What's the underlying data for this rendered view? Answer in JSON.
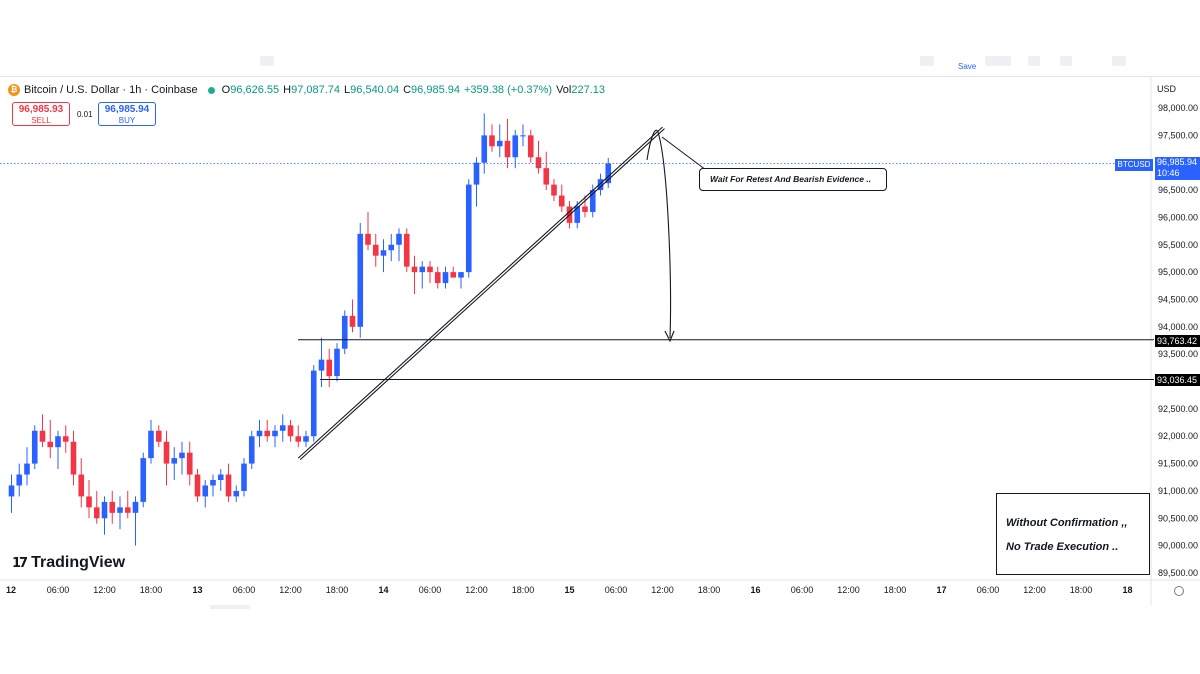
{
  "header": {
    "symbol_title": "Bitcoin / U.S. Dollar · 1h · Coinbase",
    "ohlc": [
      {
        "key": "O",
        "value": "96,626.55"
      },
      {
        "key": "H",
        "value": "97,087.74"
      },
      {
        "key": "L",
        "value": "96,540.04"
      },
      {
        "key": "C",
        "value": "96,985.94"
      },
      {
        "key": "",
        "value": "+359.38 (+0.37%)"
      },
      {
        "key": "Vol",
        "value": "227.13"
      }
    ],
    "save_label": "Save",
    "currency": "USD"
  },
  "trade": {
    "sell_price": "96,985.93",
    "sell_label": "SELL",
    "spread": "0.01",
    "buy_price": "96,985.94",
    "buy_label": "BUY"
  },
  "tags": {
    "symbol": "BTCUSD",
    "last_price": "96,985.94",
    "countdown": "10:46",
    "level_1": "93,763.42",
    "level_2": "93,036.45"
  },
  "annotations": {
    "callout": "Wait For Retest And Bearish Evidence ..",
    "note_line1": "Without Confirmation ,,",
    "note_line2": "No Trade Execution .."
  },
  "branding": {
    "logo_text": "TradingView"
  },
  "colors": {
    "up": "#2962ff",
    "down": "#f23645",
    "accent": "#2962ff",
    "text": "#131722"
  },
  "chart_data": {
    "type": "candlestick",
    "title": "Bitcoin / U.S. Dollar · 1h · Coinbase",
    "ylim": [
      89500,
      98200
    ],
    "y_ticks": [
      98000,
      97500,
      97000,
      96500,
      96000,
      95500,
      95000,
      94500,
      94000,
      93500,
      92500,
      92000,
      91500,
      91000,
      90500,
      90000,
      89500
    ],
    "y_tick_labels": [
      "98,000.00",
      "97,500.00",
      "97,000.00",
      "96,500.00",
      "96,000.00",
      "95,500.00",
      "95,000.00",
      "94,500.00",
      "94,000.00",
      "93,500.00",
      "92,500.00",
      "92,000.00",
      "91,500.00",
      "91,000.00",
      "90,500.00",
      "90,000.00",
      "89,500.00"
    ],
    "x_tick_labels": [
      "12",
      "06:00",
      "12:00",
      "18:00",
      "13",
      "06:00",
      "12:00",
      "18:00",
      "14",
      "06:00",
      "12:00",
      "18:00",
      "15",
      "06:00",
      "12:00",
      "18:00",
      "16",
      "06:00",
      "12:00",
      "18:00",
      "17",
      "06:00",
      "12:00",
      "18:00",
      "18"
    ],
    "bar_interval": "1h",
    "first_bar": "12 00:00",
    "candles": [
      [
        90900,
        91300,
        90600,
        91100
      ],
      [
        91100,
        91500,
        90900,
        91300
      ],
      [
        91300,
        91800,
        91100,
        91500
      ],
      [
        91500,
        92200,
        91400,
        92100
      ],
      [
        92100,
        92400,
        91800,
        91900
      ],
      [
        91900,
        92300,
        91600,
        91800
      ],
      [
        91800,
        92100,
        91400,
        92000
      ],
      [
        92000,
        92200,
        91700,
        91900
      ],
      [
        91900,
        92100,
        91100,
        91300
      ],
      [
        91300,
        91600,
        90700,
        90900
      ],
      [
        90900,
        91200,
        90500,
        90700
      ],
      [
        90700,
        91000,
        90400,
        90500
      ],
      [
        90500,
        90900,
        90200,
        90800
      ],
      [
        90800,
        91000,
        90400,
        90600
      ],
      [
        90600,
        90900,
        90300,
        90700
      ],
      [
        90700,
        91000,
        90500,
        90600
      ],
      [
        90600,
        90900,
        90000,
        90800
      ],
      [
        90800,
        91700,
        90700,
        91600
      ],
      [
        91600,
        92300,
        91500,
        92100
      ],
      [
        92100,
        92200,
        91800,
        91900
      ],
      [
        91900,
        92100,
        91100,
        91500
      ],
      [
        91500,
        91800,
        91200,
        91600
      ],
      [
        91600,
        91900,
        91300,
        91700
      ],
      [
        91700,
        91900,
        91100,
        91300
      ],
      [
        91300,
        91400,
        90800,
        90900
      ],
      [
        90900,
        91200,
        90700,
        91100
      ],
      [
        91100,
        91300,
        90900,
        91200
      ],
      [
        91200,
        91400,
        91000,
        91300
      ],
      [
        91300,
        91500,
        90800,
        90900
      ],
      [
        90900,
        91100,
        90800,
        91000
      ],
      [
        91000,
        91600,
        90900,
        91500
      ],
      [
        91500,
        92100,
        91400,
        92000
      ],
      [
        92000,
        92300,
        91800,
        92100
      ],
      [
        92100,
        92300,
        91900,
        92000
      ],
      [
        92000,
        92200,
        91800,
        92100
      ],
      [
        92100,
        92400,
        91900,
        92200
      ],
      [
        92200,
        92300,
        91900,
        92000
      ],
      [
        92000,
        92200,
        91800,
        91900
      ],
      [
        91900,
        92100,
        91800,
        92000
      ],
      [
        92000,
        93300,
        91900,
        93200
      ],
      [
        93200,
        93800,
        92900,
        93400
      ],
      [
        93400,
        93600,
        92900,
        93100
      ],
      [
        93100,
        93700,
        93000,
        93600
      ],
      [
        93600,
        94300,
        93500,
        94200
      ],
      [
        94200,
        94500,
        93900,
        94000
      ],
      [
        94000,
        95900,
        93800,
        95700
      ],
      [
        95700,
        96100,
        95400,
        95500
      ],
      [
        95500,
        95700,
        95100,
        95300
      ],
      [
        95300,
        95600,
        95000,
        95400
      ],
      [
        95400,
        95700,
        95200,
        95500
      ],
      [
        95500,
        95800,
        95200,
        95700
      ],
      [
        95700,
        95800,
        95000,
        95100
      ],
      [
        95100,
        95300,
        94600,
        95000
      ],
      [
        95000,
        95200,
        94700,
        95100
      ],
      [
        95100,
        95200,
        94800,
        95000
      ],
      [
        95000,
        95100,
        94700,
        94800
      ],
      [
        94800,
        95100,
        94700,
        95000
      ],
      [
        95000,
        95100,
        94900,
        94900
      ],
      [
        94900,
        95000,
        94700,
        95000
      ],
      [
        95000,
        96700,
        94900,
        96600
      ],
      [
        96600,
        97100,
        96200,
        97000
      ],
      [
        97000,
        97900,
        96800,
        97500
      ],
      [
        97500,
        97700,
        97200,
        97300
      ],
      [
        97300,
        97700,
        97100,
        97400
      ],
      [
        97400,
        97800,
        96900,
        97100
      ],
      [
        97100,
        97600,
        96900,
        97500
      ],
      [
        97500,
        97700,
        97300,
        97500
      ],
      [
        97500,
        97600,
        97000,
        97100
      ],
      [
        97100,
        97400,
        96800,
        96900
      ],
      [
        96900,
        97200,
        96500,
        96600
      ],
      [
        96600,
        96700,
        96300,
        96400
      ],
      [
        96400,
        96600,
        96100,
        96200
      ],
      [
        96200,
        96300,
        95800,
        95900
      ],
      [
        95900,
        96300,
        95800,
        96200
      ],
      [
        96200,
        96400,
        96000,
        96100
      ],
      [
        96100,
        96600,
        96000,
        96500
      ],
      [
        96500,
        96800,
        96400,
        96700
      ],
      [
        96626.55,
        97087.74,
        96540.04,
        96985.94
      ]
    ],
    "horizontal_levels": [
      93763.42,
      93036.45
    ],
    "trendline": {
      "from": {
        "date": "13 13:00",
        "y": 91600
      },
      "to": {
        "date": "15 12:00",
        "y": 97650
      }
    },
    "last_price": 96985.94
  }
}
